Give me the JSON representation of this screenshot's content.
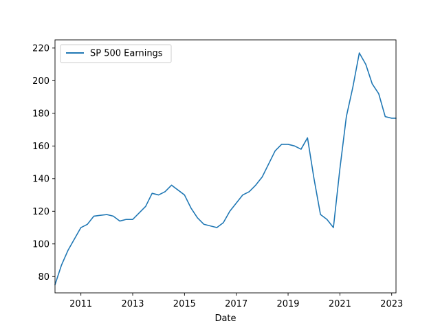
{
  "chart_data": {
    "type": "line",
    "title": "",
    "xlabel": "Date",
    "ylabel": "",
    "xlim": [
      "2010-01",
      "2023-03"
    ],
    "ylim": [
      70,
      225
    ],
    "grid": false,
    "legend_position": "top-left",
    "x_ticks": [
      "2011",
      "2013",
      "2015",
      "2017",
      "2019",
      "2021",
      "2023"
    ],
    "y_ticks": [
      80,
      100,
      120,
      140,
      160,
      180,
      200,
      220
    ],
    "series": [
      {
        "name": "SP 500 Earnings",
        "color": "#1f77b4",
        "x": [
          "2010-01",
          "2010-04",
          "2010-07",
          "2010-10",
          "2011-01",
          "2011-04",
          "2011-07",
          "2011-10",
          "2012-01",
          "2012-04",
          "2012-07",
          "2012-10",
          "2013-01",
          "2013-04",
          "2013-07",
          "2013-10",
          "2014-01",
          "2014-04",
          "2014-07",
          "2014-10",
          "2015-01",
          "2015-04",
          "2015-07",
          "2015-10",
          "2016-01",
          "2016-04",
          "2016-07",
          "2016-10",
          "2017-01",
          "2017-04",
          "2017-07",
          "2017-10",
          "2018-01",
          "2018-04",
          "2018-07",
          "2018-10",
          "2019-01",
          "2019-04",
          "2019-07",
          "2019-10",
          "2020-01",
          "2020-04",
          "2020-07",
          "2020-10",
          "2021-01",
          "2021-04",
          "2021-07",
          "2021-10",
          "2022-01",
          "2022-04",
          "2022-07",
          "2022-10",
          "2023-01",
          "2023-03"
        ],
        "y": [
          75,
          87,
          96,
          103,
          110,
          112,
          117,
          117.5,
          118,
          117,
          114,
          115,
          115,
          119,
          123,
          131,
          130,
          132,
          136,
          133,
          130,
          122,
          116,
          112,
          111,
          110,
          113,
          120,
          125,
          130,
          132,
          136,
          141,
          149,
          157,
          161,
          161,
          160,
          158,
          165,
          140,
          118,
          115,
          110,
          146,
          178,
          196,
          217,
          210,
          198,
          192,
          178,
          177,
          177
        ]
      }
    ]
  }
}
